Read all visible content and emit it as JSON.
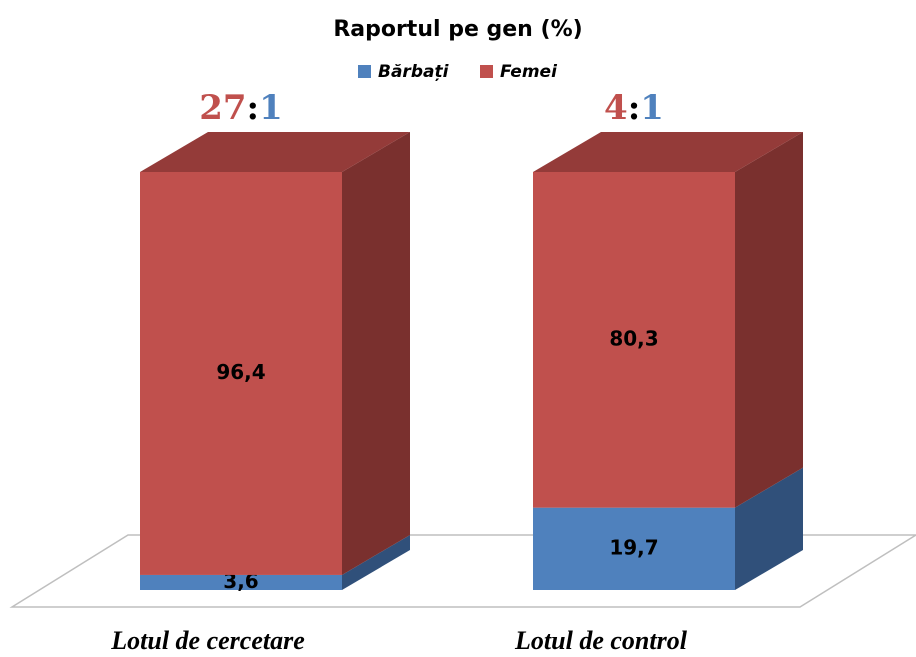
{
  "chart_data": {
    "type": "bar3d_stacked",
    "title": "Raportul pe gen (%)",
    "categories": [
      "Lotul de cercetare",
      "Lotul de control"
    ],
    "series": [
      {
        "name": "Bărbați",
        "color": "#4f81bd",
        "side_color": "#30507a",
        "top_color": "#3e6798",
        "values": [
          3.6,
          19.7
        ],
        "value_labels": [
          "3,6",
          "19,7"
        ]
      },
      {
        "name": "Femei",
        "color": "#c0504d",
        "side_color": "#7a302e",
        "top_color": "#943b39",
        "values": [
          96.4,
          80.3
        ],
        "value_labels": [
          "96,4",
          "80,3"
        ]
      }
    ],
    "ratios": [
      {
        "left": "27",
        "sep": ":",
        "right": "1"
      },
      {
        "left": "4",
        "sep": ":",
        "right": "1"
      }
    ],
    "legend": "top"
  }
}
